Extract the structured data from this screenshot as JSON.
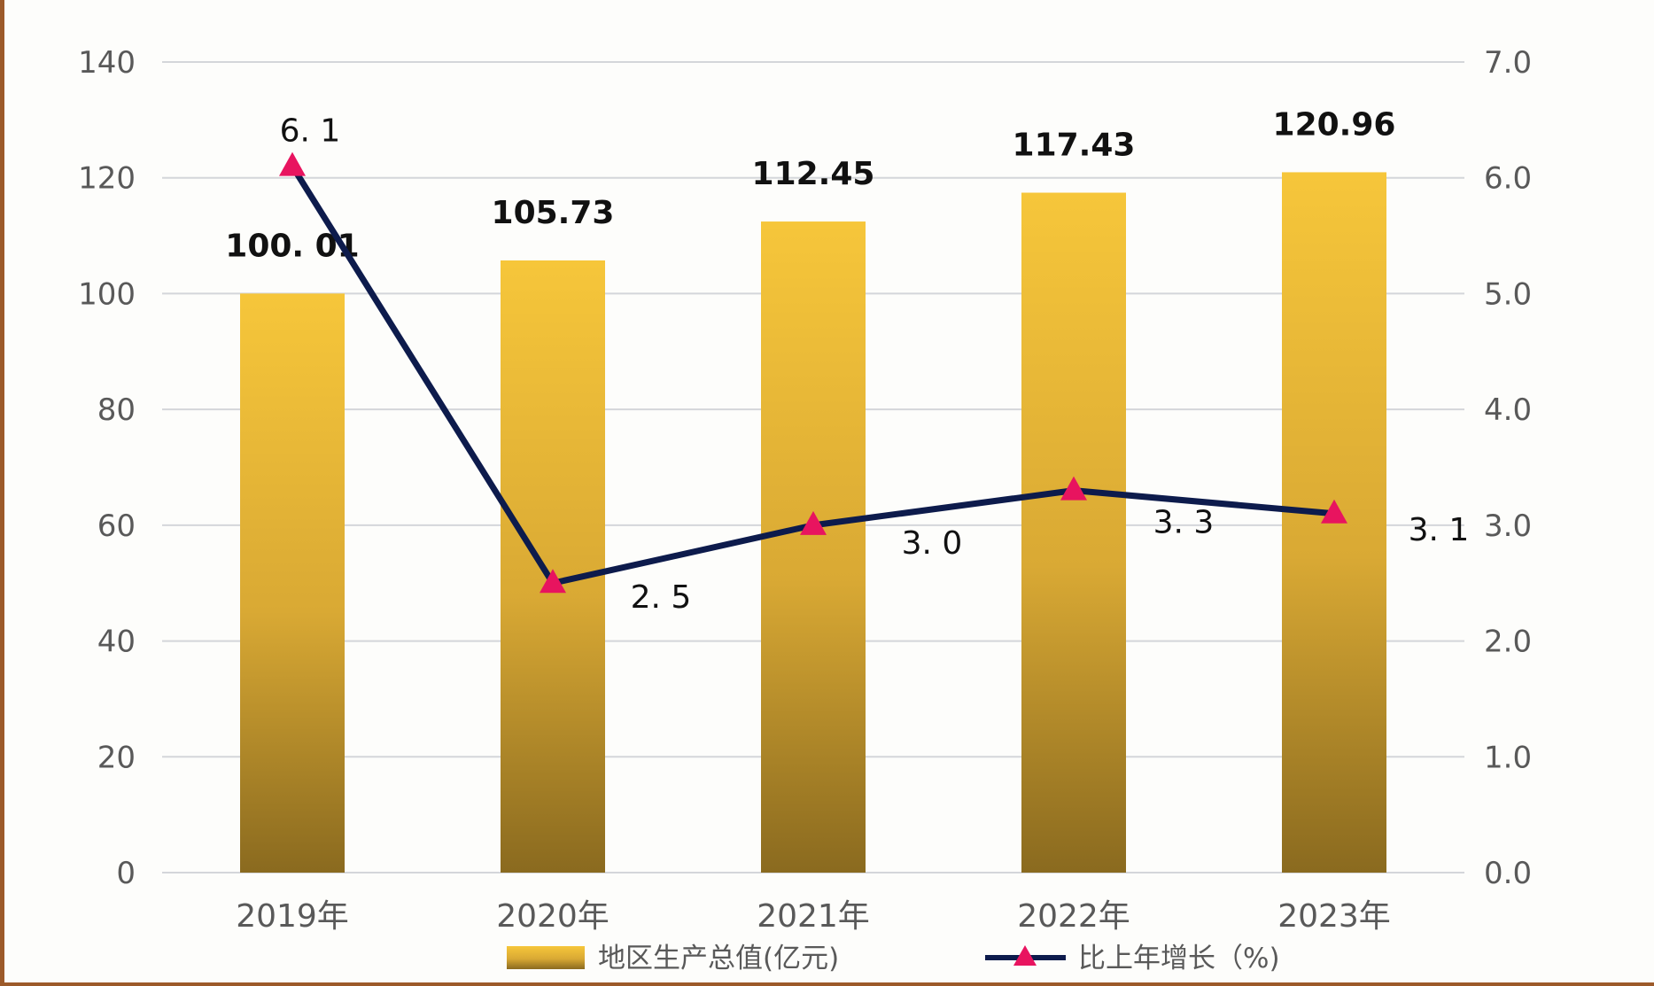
{
  "chart_data": {
    "type": "bar",
    "categories": [
      "2019年",
      "2020年",
      "2021年",
      "2022年",
      "2023年"
    ],
    "series": [
      {
        "name": "地区生产总值(亿元)",
        "type": "bar",
        "axis": "left",
        "values": [
          100.01,
          105.73,
          112.45,
          117.43,
          120.96
        ],
        "labels": [
          "100. 01",
          "105.73",
          "112.45",
          "117.43",
          "120.96"
        ]
      },
      {
        "name": "比上年增长（%)",
        "type": "line",
        "axis": "right",
        "values": [
          6.1,
          2.5,
          3.0,
          3.3,
          3.1
        ],
        "labels": [
          "6. 1",
          "2. 5",
          "3. 0",
          "3. 3",
          "3. 1"
        ]
      }
    ],
    "y_left": {
      "range": [
        0,
        140
      ],
      "ticks": [
        "0",
        "20",
        "40",
        "60",
        "80",
        "100",
        "120",
        "140"
      ]
    },
    "y_right": {
      "range": [
        0,
        7
      ],
      "ticks": [
        "0.0",
        "1.0",
        "2.0",
        "3.0",
        "4.0",
        "5.0",
        "6.0",
        "7.0"
      ]
    },
    "grid": true,
    "legend_position": "bottom",
    "colors": {
      "bar_top": "#f6c63a",
      "bar_bottom": "#8a6a1f",
      "line": "#0d1b4c",
      "marker": "#e8145f",
      "grid": "#d4d6da",
      "tick_text": "#595959",
      "label_text": "#111111"
    }
  }
}
